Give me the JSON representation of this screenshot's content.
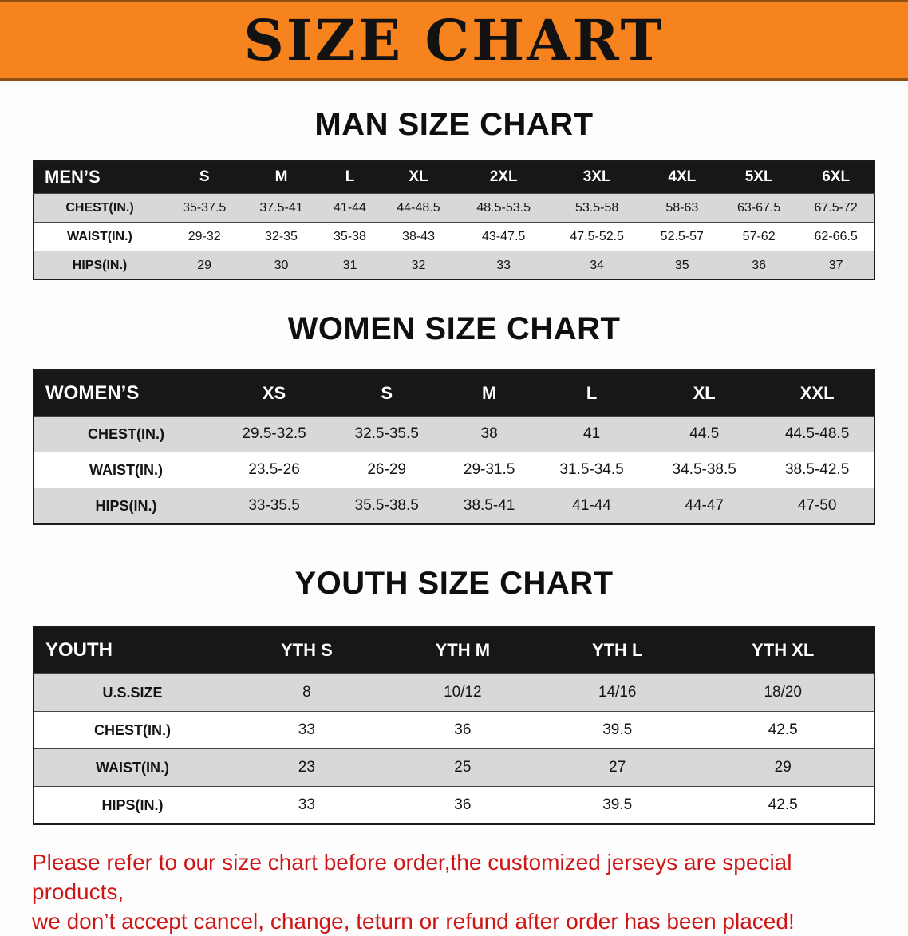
{
  "banner": {
    "title": "SIZE CHART"
  },
  "sections": {
    "men": {
      "heading": "MAN SIZE CHART",
      "header": [
        "MEN’S",
        "S",
        "M",
        "L",
        "XL",
        "2XL",
        "3XL",
        "4XL",
        "5XL",
        "6XL"
      ],
      "rows": [
        [
          "CHEST(IN.)",
          "35-37.5",
          "37.5-41",
          "41-44",
          "44-48.5",
          "48.5-53.5",
          "53.5-58",
          "58-63",
          "63-67.5",
          "67.5-72"
        ],
        [
          "WAIST(IN.)",
          "29-32",
          "32-35",
          "35-38",
          "38-43",
          "43-47.5",
          "47.5-52.5",
          "52.5-57",
          "57-62",
          "62-66.5"
        ],
        [
          "HIPS(IN.)",
          "29",
          "30",
          "31",
          "32",
          "33",
          "34",
          "35",
          "36",
          "37"
        ]
      ]
    },
    "women": {
      "heading": "WOMEN SIZE CHART",
      "header": [
        "WOMEN’S",
        "XS",
        "S",
        "M",
        "L",
        "XL",
        "XXL"
      ],
      "rows": [
        [
          "CHEST(IN.)",
          "29.5-32.5",
          "32.5-35.5",
          "38",
          "41",
          "44.5",
          "44.5-48.5"
        ],
        [
          "WAIST(IN.)",
          "23.5-26",
          "26-29",
          "29-31.5",
          "31.5-34.5",
          "34.5-38.5",
          "38.5-42.5"
        ],
        [
          "HIPS(IN.)",
          "33-35.5",
          "35.5-38.5",
          "38.5-41",
          "41-44",
          "44-47",
          "47-50"
        ]
      ]
    },
    "youth": {
      "heading": "YOUTH SIZE CHART",
      "header": [
        "YOUTH",
        "YTH S",
        "YTH M",
        "YTH L",
        "YTH XL"
      ],
      "rows": [
        [
          "U.S.SIZE",
          "8",
          "10/12",
          "14/16",
          "18/20"
        ],
        [
          "CHEST(IN.)",
          "33",
          "36",
          "39.5",
          "42.5"
        ],
        [
          "WAIST(IN.)",
          "23",
          "25",
          "27",
          "29"
        ],
        [
          "HIPS(IN.)",
          "33",
          "36",
          "39.5",
          "42.5"
        ]
      ]
    }
  },
  "footer": {
    "line1": "Please refer to our size chart before order,the customized jerseys are special products,",
    "line2": "we don’t accept cancel, change, teturn or refund after order has been placed!"
  },
  "colors": {
    "banner_bg": "#f6831d",
    "banner_border": "#94500e",
    "table_header_bg": "#171717",
    "row_shade": "#d8d8d8",
    "footer_text": "#cf1616"
  }
}
